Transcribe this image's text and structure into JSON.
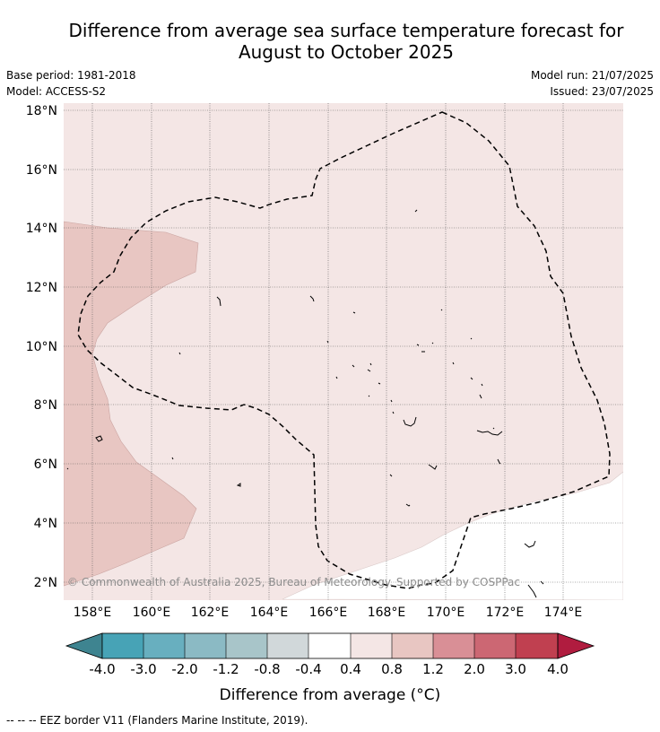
{
  "title_line1": "Difference from average sea surface temperature forecast for",
  "title_line2": "August to October 2025",
  "base_period": "Base period: 1981-2018",
  "model": "Model: ACCESS-S2",
  "model_run": "Model run: 21/07/2025",
  "issued": "Issued: 23/07/2025",
  "copyright": "© Commonwealth of Australia 2025, Bureau of Meteorology. Supported by COSPPac",
  "footnote": "-- -- -- EEZ border V11 (Flanders Marine Institute, 2019).",
  "map": {
    "lon_labels": [
      "158°E",
      "160°E",
      "162°E",
      "164°E",
      "166°E",
      "168°E",
      "170°E",
      "172°E",
      "174°E"
    ],
    "lat_labels": [
      "18°N",
      "16°N",
      "14°N",
      "12°N",
      "10°N",
      "8°N",
      "6°N",
      "4°N",
      "2°N"
    ],
    "lon_range": [
      157,
      176
    ],
    "lat_range": [
      1.4,
      18.3
    ],
    "colors": {
      "band_0_4_to_0_8": "#f4e6e5",
      "band_0_8_to_1_2": "#e8c6c2",
      "band_minus_0_4_to_0_4": "#ffffff"
    }
  },
  "colorbar": {
    "title": "Difference from average (°C)",
    "labels": [
      "-4.0",
      "-3.0",
      "-2.0",
      "-1.2",
      "-0.8",
      "-0.4",
      "0.4",
      "0.8",
      "1.2",
      "2.0",
      "3.0",
      "4.0"
    ],
    "colors": [
      "#3e8490",
      "#47a3b6",
      "#68afbf",
      "#8bbac4",
      "#a8c5c9",
      "#d1d8da",
      "#ffffff",
      "#f4e6e5",
      "#e8c6c2",
      "#d98f96",
      "#cc6773",
      "#c04050",
      "#b01c3f"
    ]
  }
}
